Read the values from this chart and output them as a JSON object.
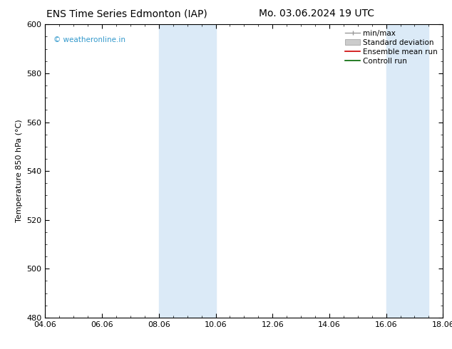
{
  "title_left": "ENS Time Series Edmonton (IAP)",
  "title_right": "Mo. 03.06.2024 19 UTC",
  "ylabel": "Temperature 850 hPa (°C)",
  "ylim": [
    480,
    600
  ],
  "yticks": [
    480,
    500,
    520,
    540,
    560,
    580,
    600
  ],
  "xtick_labels": [
    "04.06",
    "06.06",
    "08.06",
    "10.06",
    "12.06",
    "14.06",
    "16.06",
    "18.06"
  ],
  "xtick_positions": [
    0,
    2,
    4,
    6,
    8,
    10,
    12,
    14
  ],
  "xlim": [
    0,
    14
  ],
  "shaded_bands": [
    {
      "x_start": 4.0,
      "x_end": 6.0
    },
    {
      "x_start": 12.0,
      "x_end": 13.5
    }
  ],
  "shade_color": "#dbeaf7",
  "bg_color": "#ffffff",
  "watermark_text": "© weatheronline.in",
  "watermark_color": "#3399cc",
  "title_fontsize": 10,
  "axis_fontsize": 8,
  "tick_fontsize": 8,
  "legend_fontsize": 7.5
}
